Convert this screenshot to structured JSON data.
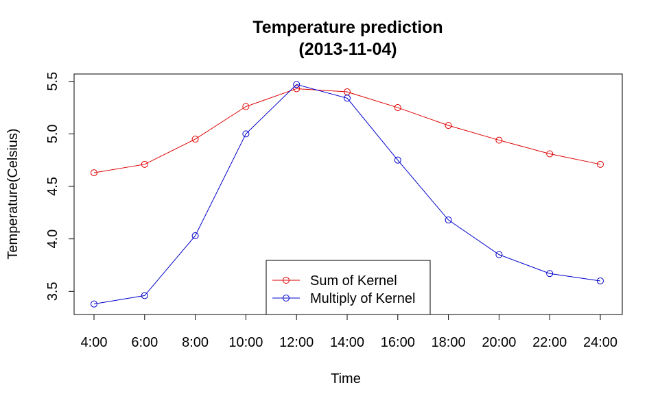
{
  "chart_data": {
    "type": "line",
    "title": "Temperature prediction",
    "subtitle": "(2013-11-04)",
    "xlabel": "Time",
    "ylabel": "Temperature(Celsius)",
    "categories": [
      "4:00",
      "6:00",
      "8:00",
      "10:00",
      "12:00",
      "14:00",
      "16:00",
      "18:00",
      "20:00",
      "22:00",
      "24:00"
    ],
    "yticks": [
      "3.5",
      "4.0",
      "4.5",
      "5.0",
      "5.5"
    ],
    "ylim": [
      3.28,
      5.57
    ],
    "grid": false,
    "legend_position": "bottom-center",
    "series": [
      {
        "name": "Sum of Kernel",
        "color": "#DF0000",
        "marker": "open-circle",
        "values": [
          4.63,
          4.71,
          4.95,
          5.26,
          5.43,
          5.4,
          5.25,
          5.08,
          4.94,
          4.81,
          4.71
        ]
      },
      {
        "name": "Multiply of Kernel",
        "color": "#0000CC",
        "marker": "open-circle",
        "values": [
          3.38,
          3.46,
          4.03,
          5.0,
          5.47,
          5.34,
          4.75,
          4.18,
          3.85,
          3.67,
          3.6
        ]
      }
    ]
  }
}
